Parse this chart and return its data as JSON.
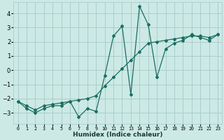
{
  "x_data": [
    0,
    1,
    2,
    3,
    4,
    5,
    6,
    7,
    8,
    9,
    10,
    11,
    12,
    13,
    14,
    15,
    16,
    17,
    18,
    19,
    20,
    21,
    22,
    23
  ],
  "y_line1": [
    -2.2,
    -2.7,
    -3.0,
    -2.7,
    -2.5,
    -2.5,
    -2.2,
    -3.3,
    -2.7,
    -2.9,
    -0.4,
    2.4,
    3.1,
    -1.7,
    4.5,
    3.2,
    -0.5,
    1.5,
    1.9,
    2.1,
    2.5,
    2.3,
    2.1,
    2.5
  ],
  "y_line2": [
    -2.2,
    -2.5,
    -2.8,
    -2.5,
    -2.4,
    -2.3,
    -2.2,
    -2.1,
    -2.0,
    -1.8,
    -1.1,
    -0.5,
    0.1,
    0.7,
    1.3,
    1.9,
    2.0,
    2.1,
    2.2,
    2.3,
    2.4,
    2.4,
    2.3,
    2.5
  ],
  "bg_color": "#cce9e5",
  "grid_color": "#aaceca",
  "line_color": "#1a6e62",
  "ylim": [
    -3.8,
    4.8
  ],
  "xlim": [
    -0.5,
    23.5
  ],
  "yticks": [
    -3,
    -2,
    -1,
    0,
    1,
    2,
    3,
    4
  ],
  "xtick_labels": [
    "0",
    "1",
    "2",
    "3",
    "4",
    "5",
    "6",
    "7",
    "8",
    "9",
    "10",
    "11",
    "12",
    "13",
    "14",
    "15",
    "16",
    "17",
    "18",
    "19",
    "20",
    "21",
    "22",
    "23"
  ],
  "xlabel": "Humidex (Indice chaleur)",
  "marker": "D",
  "markersize": 2.0,
  "linewidth": 0.9,
  "xlabel_fontsize": 6.5,
  "ytick_fontsize": 6,
  "xtick_fontsize": 4.8
}
